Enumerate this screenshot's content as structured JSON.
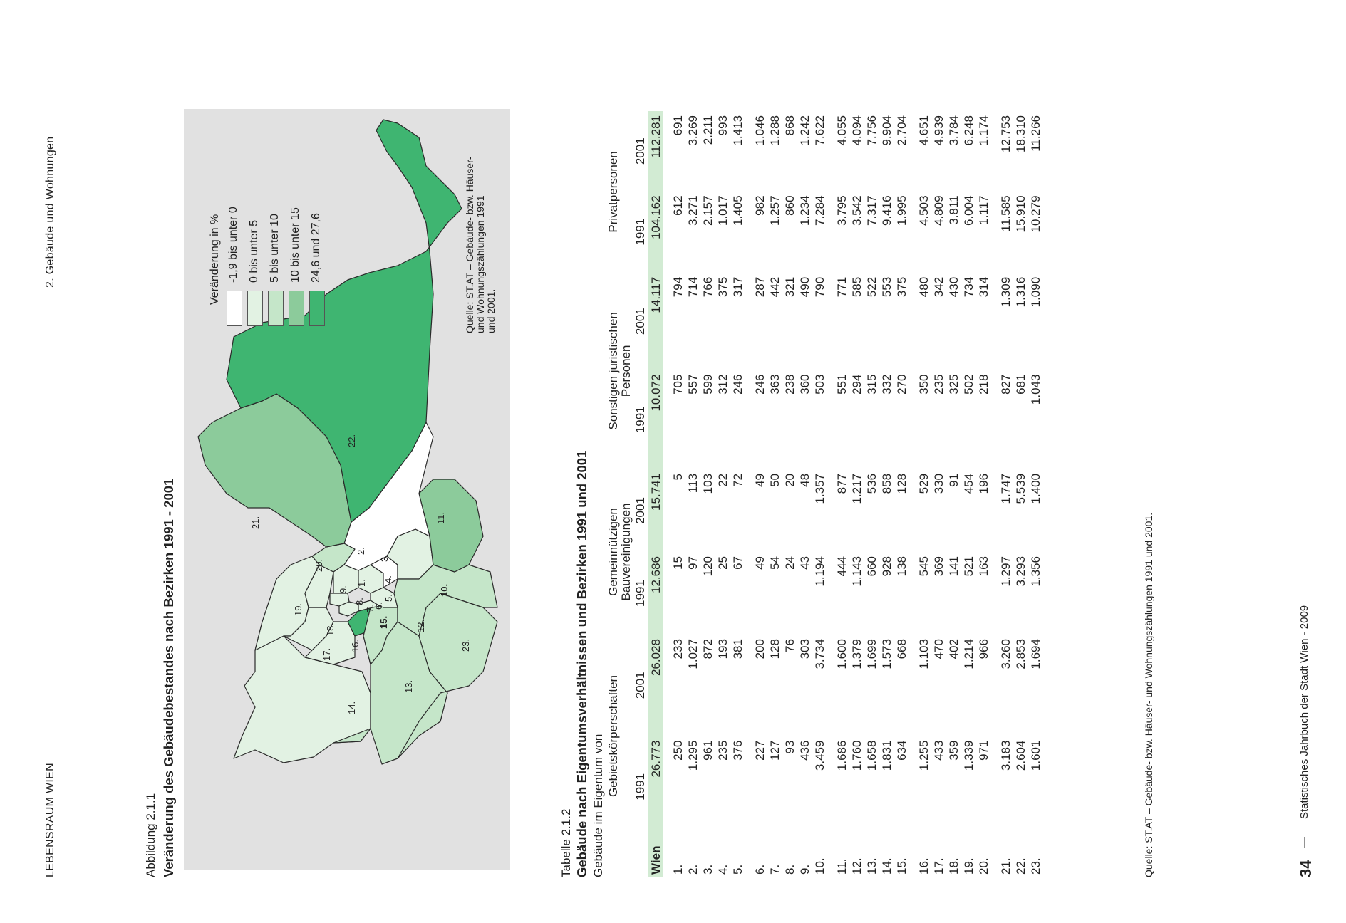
{
  "header": {
    "left": "LEBENSRAUM WIEN",
    "right": "2. Gebäude und Wohnungen"
  },
  "figure": {
    "label": "Abbildung 2.1.1",
    "title": "Veränderung des Gebäudebestandes nach Bezirken 1991 - 2001",
    "legend_title": "Veränderung in %",
    "legend": [
      {
        "label": "-1,9 bis unter 0",
        "color": "#ffffff"
      },
      {
        "label": "0 bis unter   5",
        "color": "#e2f2e3"
      },
      {
        "label": "5 bis unter 10",
        "color": "#c5e6c9"
      },
      {
        "label": "10 bis unter 15",
        "color": "#8ccb9b"
      },
      {
        "label": "24,6 und 27,6",
        "color": "#3fb571"
      }
    ],
    "source_lines": [
      "Quelle: ST.AT – Gebäude- bzw. Häuser-",
      "und Wohnungszählungen 1991",
      "und 2001."
    ],
    "districts": [
      "1.",
      "2.",
      "3.",
      "4.",
      "5.",
      "6.",
      "7.",
      "8.",
      "9.",
      "10.",
      "11.",
      "12.",
      "13.",
      "14.",
      "15.",
      "16.",
      "17.",
      "18.",
      "19.",
      "20.",
      "21.",
      "22.",
      "23."
    ]
  },
  "table": {
    "label": "Tabelle 2.1.2",
    "title": "Gebäude nach Eigentumsverhältnissen und Bezirken 1991 und 2001",
    "subtitle": "Gebäude im Eigentum von",
    "groups": [
      "Gebietskörperschaften",
      "Gemeinnützigen Bauvereinigungen",
      "Sonstigen juristischen Personen",
      "Privatpersonen"
    ],
    "group_lines": [
      [
        "Gebietskörperschaften"
      ],
      [
        "Gemeinnützigen",
        "Bauvereinigungen"
      ],
      [
        "Sonstigen juristischen",
        "Personen"
      ],
      [
        "Privatpersonen"
      ]
    ],
    "years": [
      "1991",
      "2001",
      "1991",
      "2001",
      "1991",
      "2001",
      "1991",
      "2001"
    ],
    "total": {
      "label": "Wien",
      "values": [
        "26.773",
        "26.028",
        "12.686",
        "15.741",
        "10.072",
        "14.117",
        "104.162",
        "112.281"
      ]
    },
    "rows": [
      {
        "label": "1.",
        "values": [
          "250",
          "233",
          "15",
          "5",
          "705",
          "794",
          "612",
          "691"
        ]
      },
      {
        "label": "2.",
        "values": [
          "1.295",
          "1.027",
          "97",
          "113",
          "557",
          "714",
          "3.271",
          "3.269"
        ]
      },
      {
        "label": "3.",
        "values": [
          "961",
          "872",
          "120",
          "103",
          "599",
          "766",
          "2.157",
          "2.211"
        ]
      },
      {
        "label": "4.",
        "values": [
          "235",
          "193",
          "25",
          "22",
          "312",
          "375",
          "1.017",
          "993"
        ]
      },
      {
        "label": "5.",
        "values": [
          "376",
          "381",
          "67",
          "72",
          "246",
          "317",
          "1.405",
          "1.413"
        ]
      },
      {
        "label": "6.",
        "values": [
          "227",
          "200",
          "49",
          "49",
          "246",
          "287",
          "982",
          "1.046"
        ]
      },
      {
        "label": "7.",
        "values": [
          "127",
          "128",
          "54",
          "50",
          "363",
          "442",
          "1.257",
          "1.288"
        ]
      },
      {
        "label": "8.",
        "values": [
          "93",
          "76",
          "24",
          "20",
          "238",
          "321",
          "860",
          "868"
        ]
      },
      {
        "label": "9.",
        "values": [
          "436",
          "303",
          "43",
          "48",
          "360",
          "490",
          "1.234",
          "1.242"
        ]
      },
      {
        "label": "10.",
        "values": [
          "3.459",
          "3.734",
          "1.194",
          "1.357",
          "503",
          "790",
          "7.284",
          "7.622"
        ]
      },
      {
        "label": "11.",
        "values": [
          "1.686",
          "1.600",
          "444",
          "877",
          "551",
          "771",
          "3.795",
          "4.055"
        ]
      },
      {
        "label": "12.",
        "values": [
          "1.760",
          "1.379",
          "1.143",
          "1.217",
          "294",
          "585",
          "3.542",
          "4.094"
        ]
      },
      {
        "label": "13.",
        "values": [
          "1.658",
          "1.699",
          "660",
          "536",
          "315",
          "522",
          "7.317",
          "7.756"
        ]
      },
      {
        "label": "14.",
        "values": [
          "1.831",
          "1.573",
          "928",
          "858",
          "332",
          "553",
          "9.416",
          "9.904"
        ]
      },
      {
        "label": "15.",
        "values": [
          "634",
          "668",
          "138",
          "128",
          "270",
          "375",
          "1.995",
          "2.704"
        ]
      },
      {
        "label": "16.",
        "values": [
          "1.255",
          "1.103",
          "545",
          "529",
          "350",
          "480",
          "4.503",
          "4.651"
        ]
      },
      {
        "label": "17.",
        "values": [
          "433",
          "470",
          "369",
          "330",
          "235",
          "342",
          "4.809",
          "4.939"
        ]
      },
      {
        "label": "18.",
        "values": [
          "359",
          "402",
          "141",
          "91",
          "325",
          "430",
          "3.811",
          "3.784"
        ]
      },
      {
        "label": "19.",
        "values": [
          "1.339",
          "1.214",
          "521",
          "454",
          "502",
          "734",
          "6.004",
          "6.248"
        ]
      },
      {
        "label": "20.",
        "values": [
          "971",
          "966",
          "163",
          "196",
          "218",
          "314",
          "1.117",
          "1.174"
        ]
      },
      {
        "label": "21.",
        "values": [
          "3.183",
          "3.260",
          "1.297",
          "1.747",
          "827",
          "1.309",
          "11.585",
          "12.753"
        ]
      },
      {
        "label": "22.",
        "values": [
          "2.604",
          "2.853",
          "3.293",
          "5.539",
          "681",
          "1.316",
          "15.910",
          "18.310"
        ]
      },
      {
        "label": "23.",
        "values": [
          "1.601",
          "1.694",
          "1.356",
          "1.400",
          "1.043",
          "1.090",
          "10.279",
          "11.266"
        ]
      }
    ],
    "source": "Quelle: ST.AT – Gebäude- bzw. Häuser- und Wohnungszählungen 1991 und  2001."
  },
  "footer": {
    "page_number": "34",
    "separator": "—",
    "publication": "Statistisches Jahrbuch der Stadt Wien - 2009"
  }
}
